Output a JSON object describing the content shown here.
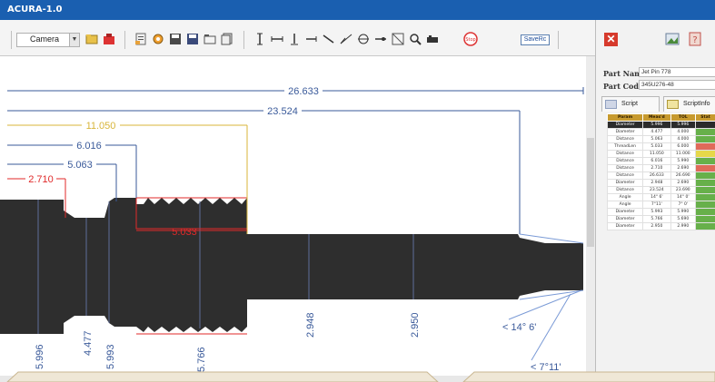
{
  "window": {
    "title": "ACURA-1.0"
  },
  "toolbar": {
    "camera_label": "Camera",
    "saverec_label": "SaveRc"
  },
  "right_panel": {
    "part_name_label": "Part Name",
    "part_name_value": "Jet Pin 778",
    "part_code_label": "Part Code",
    "part_code_value": "345U276-48",
    "tabs": [
      {
        "label": "Script"
      },
      {
        "label": "ScriptInfo"
      }
    ],
    "table": {
      "headers": [
        "Param",
        "Meas'd",
        "TOL",
        "Stat"
      ],
      "rows": [
        {
          "param": "Diameter",
          "meas": "5.996",
          "tol": "5.996",
          "status": "pass",
          "selected": true
        },
        {
          "param": "Diameter",
          "meas": "4.477",
          "tol": "4.000",
          "status": "pass"
        },
        {
          "param": "Distance",
          "meas": "5.063",
          "tol": "4.000",
          "status": "pass"
        },
        {
          "param": "ThreadLen",
          "meas": "5.033",
          "tol": "6.000",
          "status": "fail"
        },
        {
          "param": "Distance",
          "meas": "11.050",
          "tol": "11.000",
          "status": "warn"
        },
        {
          "param": "Distance",
          "meas": "6.016",
          "tol": "5.990",
          "status": "pass"
        },
        {
          "param": "Distance",
          "meas": "2.710",
          "tol": "2.690",
          "status": "fail"
        },
        {
          "param": "Distance",
          "meas": "26.633",
          "tol": "26.690",
          "status": "pass"
        },
        {
          "param": "Diameter",
          "meas": "2.948",
          "tol": "2.690",
          "status": "pass"
        },
        {
          "param": "Distance",
          "meas": "23.524",
          "tol": "23.690",
          "status": "pass"
        },
        {
          "param": "Angle",
          "meas": "14° 6'",
          "tol": "14° 0'",
          "status": "pass"
        },
        {
          "param": "Angle",
          "meas": "7°11'",
          "tol": "7° 0'",
          "status": "pass"
        },
        {
          "param": "Diameter",
          "meas": "5.993",
          "tol": "5.990",
          "status": "pass"
        },
        {
          "param": "Diameter",
          "meas": "5.766",
          "tol": "5.690",
          "status": "pass"
        },
        {
          "param": "Diameter",
          "meas": "2.950",
          "tol": "2.990",
          "status": "pass"
        }
      ]
    }
  },
  "measurements": {
    "d_26633": "26.633",
    "d_23524": "23.524",
    "d_11050": "11.050",
    "d_6016": "6.016",
    "d_5063": "5.063",
    "d_2710": "2.710",
    "d_5033": "5.033",
    "dia_5996": "5.996",
    "dia_4477": "4.477",
    "dia_5993": "5.993",
    "dia_5766": "5.766",
    "dia_2948": "2.948",
    "dia_2950": "2.950",
    "angle_14": "< 14° 6'",
    "angle_7": "<  7°11'"
  },
  "colors": {
    "blue_dim": "#3a5a9a",
    "red_dim": "#e02a2a",
    "yellow_dim": "#d8b53a",
    "part": "#2e2e2e",
    "titlebar": "#1a5fb0"
  }
}
